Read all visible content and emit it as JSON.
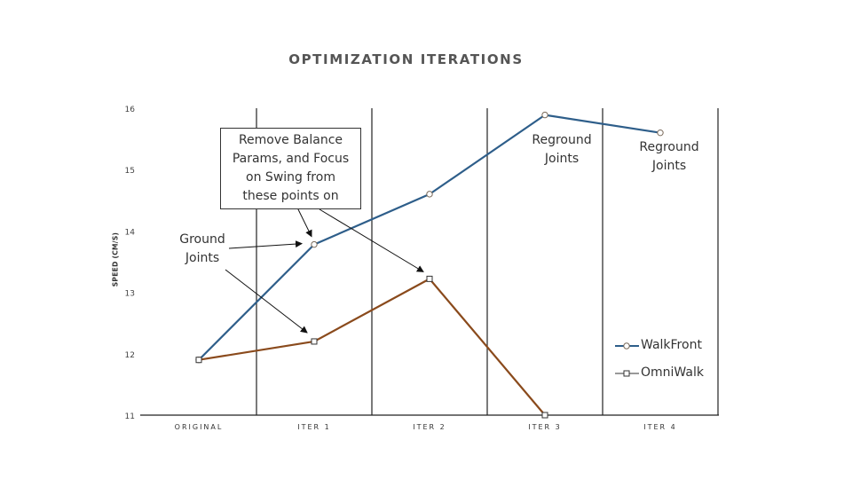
{
  "chart_data": {
    "type": "line",
    "title": "OPTIMIZATION ITERATIONS",
    "ylabel": "SPEED (CM/S)",
    "xlabel": "",
    "categories": [
      "ORIGINAL",
      "ITER 1",
      "ITER 2",
      "ITER 3",
      "ITER 4"
    ],
    "ylim": [
      11,
      16
    ],
    "yticks": [
      11,
      12,
      13,
      14,
      15,
      16
    ],
    "series": [
      {
        "name": "WalkFront",
        "marker": "circle",
        "color": "#2e5e8a",
        "values": [
          11.9,
          13.78,
          14.6,
          15.89,
          15.6
        ]
      },
      {
        "name": "OmniWalk",
        "marker": "square",
        "color": "#8a4a1c",
        "values": [
          11.9,
          12.2,
          13.22,
          11.0,
          null
        ]
      }
    ],
    "legend": "right",
    "annotations": {
      "box": [
        "Remove Balance",
        "Params, and Focus",
        "on Swing from",
        "these points on"
      ],
      "ground": [
        "Ground",
        "Joints"
      ],
      "reground1": [
        "Reground",
        "Joints"
      ],
      "reground2": [
        "Reground",
        "Joints"
      ]
    }
  }
}
